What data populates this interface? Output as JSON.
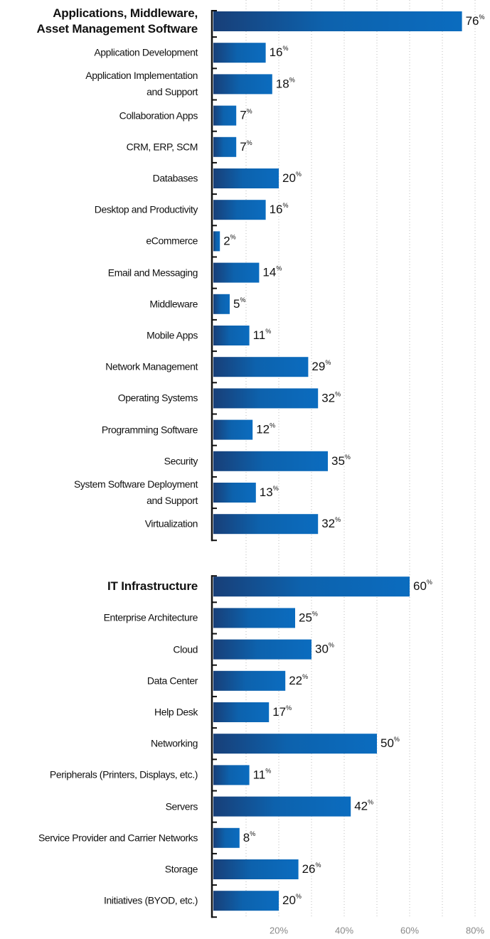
{
  "chart_data": {
    "type": "bar",
    "orientation": "horizontal",
    "color": "#0b6cbf",
    "xlim": [
      0,
      80
    ],
    "xticks": [
      {
        "value": 20,
        "label": "20%"
      },
      {
        "value": 40,
        "label": "40%"
      },
      {
        "value": 60,
        "label": "60%"
      },
      {
        "value": 80,
        "label": "80%"
      }
    ],
    "minor_xticks": [
      10,
      30,
      50,
      70
    ],
    "grid": true,
    "groups": [
      {
        "name": "Applications, Middleware,\nAsset Management Software",
        "value": 76,
        "value_label": "76%",
        "categories": [
          "Application Development",
          "Application Implementation\nand Support",
          "Collaboration Apps",
          "CRM, ERP, SCM",
          "Databases",
          "Desktop and Productivity",
          "eCommerce",
          "Email and Messaging",
          "Middleware",
          "Mobile Apps",
          "Network Management",
          "Operating Systems",
          "Programming Software",
          "Security",
          "System Software Deployment\nand Support",
          "Virtualization"
        ],
        "values": [
          16,
          18,
          7,
          7,
          20,
          16,
          2,
          14,
          5,
          11,
          29,
          32,
          12,
          35,
          13,
          32
        ],
        "value_labels": [
          "16%",
          "18%",
          "7%",
          "7%",
          "20%",
          "16%",
          "2%",
          "14%",
          "5%",
          "11%",
          "29%",
          "32%",
          "12%",
          "35%",
          "13%",
          "32%"
        ]
      },
      {
        "name": "IT Infrastructure",
        "value": 60,
        "value_label": "60%",
        "categories": [
          "Enterprise Architecture",
          "Cloud",
          "Data Center",
          "Help Desk",
          "Networking",
          "Peripherals (Printers, Displays, etc.)",
          "Servers",
          "Service Provider and Carrier Networks",
          "Storage",
          "Initiatives (BYOD,  etc.)"
        ],
        "values": [
          25,
          30,
          22,
          17,
          50,
          11,
          42,
          8,
          26,
          20
        ],
        "value_labels": [
          "25%",
          "30%",
          "22%",
          "17%",
          "50%",
          "11%",
          "42%",
          "8%",
          "26%",
          "20%"
        ]
      }
    ]
  }
}
